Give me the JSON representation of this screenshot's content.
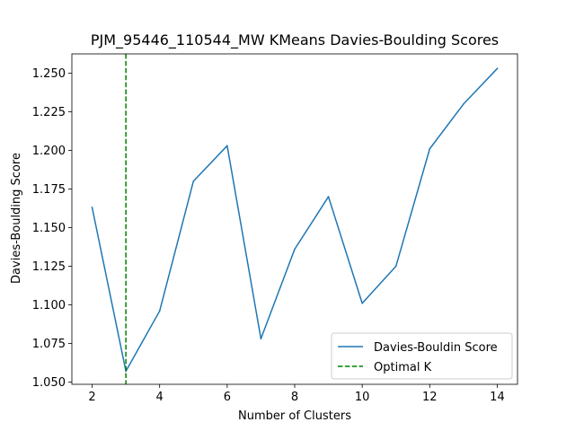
{
  "chart_data": {
    "type": "line",
    "title": "PJM_95446_110544_MW KMeans Davies-Boulding Scores",
    "xlabel": "Number of Clusters",
    "ylabel": "Davies-Boulding Score",
    "xlim": [
      1.4,
      14.6
    ],
    "ylim": [
      1.0485,
      1.2625
    ],
    "xticks": [
      2,
      4,
      6,
      8,
      10,
      12,
      14
    ],
    "xtick_labels": [
      "2",
      "4",
      "6",
      "8",
      "10",
      "12",
      "14"
    ],
    "yticks": [
      1.05,
      1.075,
      1.1,
      1.125,
      1.15,
      1.175,
      1.2,
      1.225,
      1.25
    ],
    "ytick_labels": [
      "1.050",
      "1.075",
      "1.100",
      "1.125",
      "1.150",
      "1.175",
      "1.200",
      "1.225",
      "1.250"
    ],
    "grid": false,
    "legend_position": "lower-right",
    "series": [
      {
        "name": "Davies-Bouldin Score",
        "style": "solid",
        "color": "#1f77b4",
        "x": [
          2,
          3,
          4,
          5,
          6,
          7,
          8,
          9,
          10,
          11,
          12,
          13,
          14
        ],
        "y": [
          1.163,
          1.057,
          1.096,
          1.18,
          1.203,
          1.078,
          1.136,
          1.17,
          1.101,
          1.125,
          1.201,
          1.23,
          1.253
        ]
      }
    ],
    "vlines": [
      {
        "name": "Optimal K",
        "x": 3,
        "style": "dashed",
        "color": "#008000"
      }
    ]
  }
}
